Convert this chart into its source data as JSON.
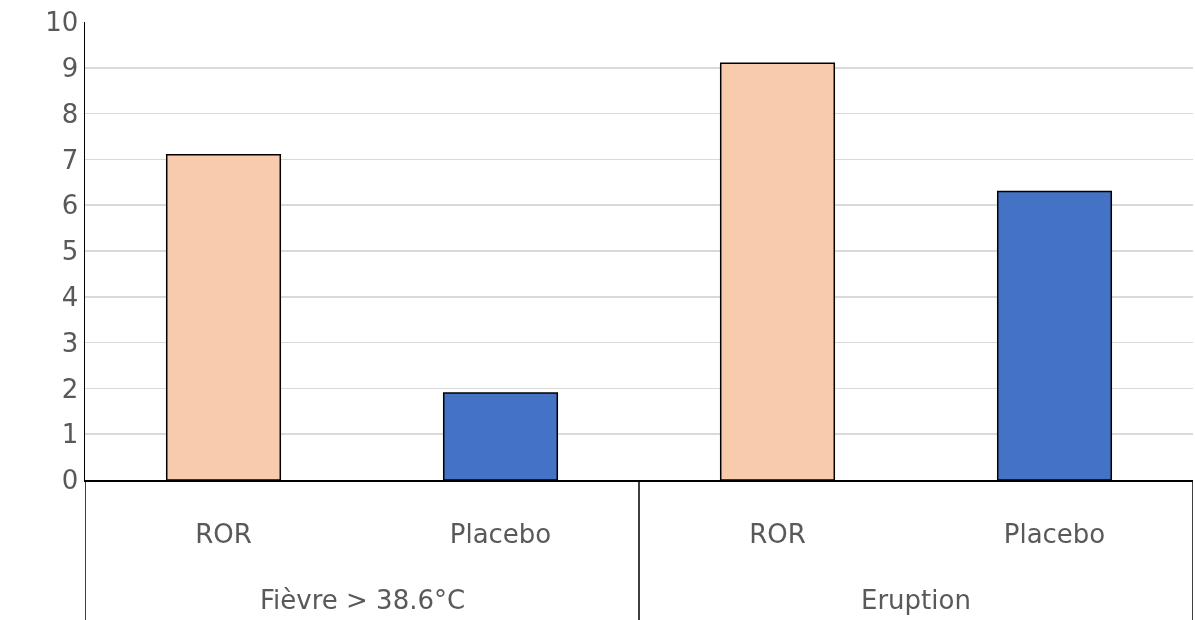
{
  "chart_data": {
    "type": "bar",
    "categories": [
      "ROR",
      "Placebo",
      "ROR",
      "Placebo"
    ],
    "values": [
      7.1,
      1.9,
      9.1,
      6.3
    ],
    "colors": [
      "#f8cbad",
      "#4472c4",
      "#f8cbad",
      "#4472c4"
    ],
    "ylim": [
      0,
      10
    ],
    "yticks": [
      0,
      1,
      2,
      3,
      4,
      5,
      6,
      7,
      8,
      9,
      10
    ],
    "grid": "y",
    "annotations": [
      "Fièvre > 38.6°C",
      "Eruption"
    ]
  }
}
